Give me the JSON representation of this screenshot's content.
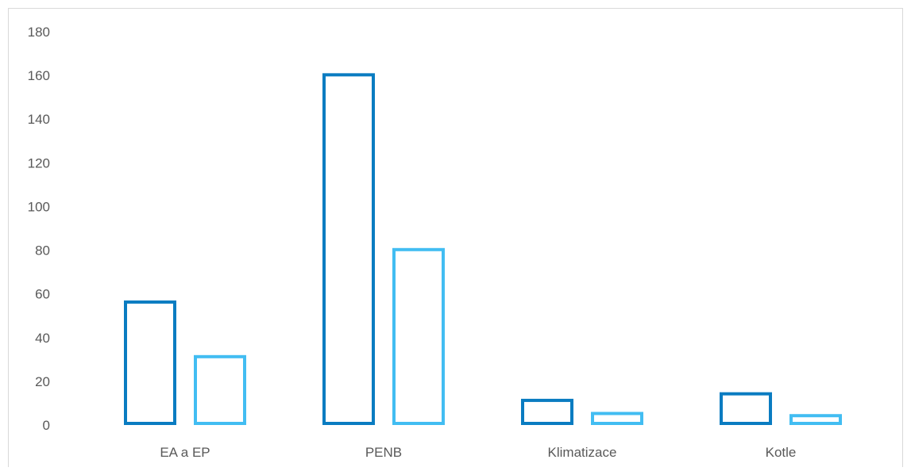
{
  "chart_data": {
    "type": "bar",
    "categories": [
      "EA a EP",
      "PENB",
      "Klimatizace",
      "Kotle"
    ],
    "series": [
      {
        "values": [
          57,
          161,
          12,
          15
        ]
      },
      {
        "values": [
          32,
          81,
          6,
          5
        ]
      }
    ],
    "ylim": [
      0,
      180
    ],
    "yticks": [
      "0",
      "20",
      "40",
      "60",
      "80",
      "100",
      "120",
      "140",
      "160",
      "180"
    ],
    "grid": false,
    "legend": "none",
    "bar_style": "outline",
    "colors": {
      "series": [
        "#0a7cc1",
        "#42bdf2"
      ],
      "text": "#595959",
      "border": "#d9d9d9",
      "background": "#ffffff"
    }
  }
}
